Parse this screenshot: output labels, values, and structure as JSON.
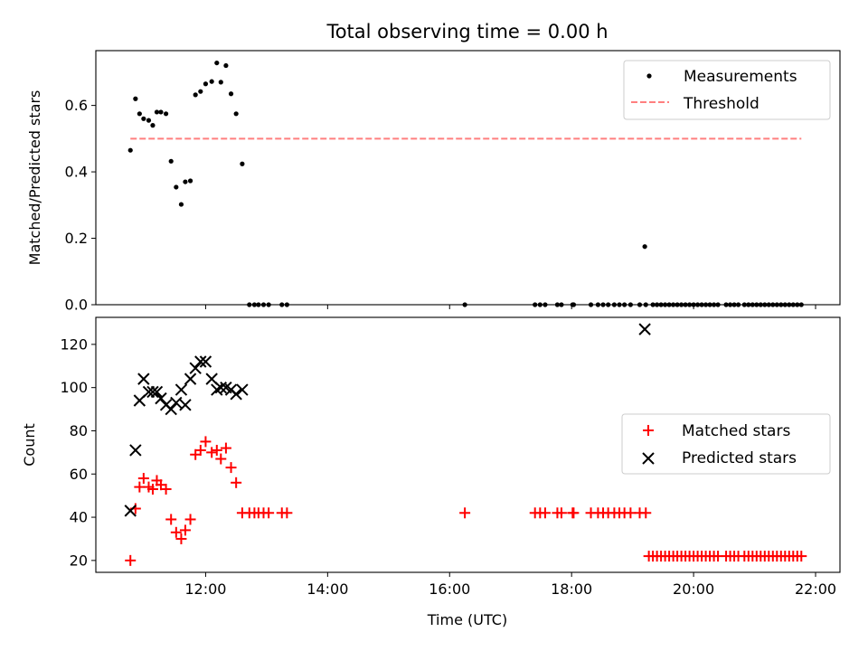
{
  "chart_data": [
    {
      "type": "scatter",
      "title": "Total observing time = 0.00 h",
      "xlabel": "",
      "ylabel": "Matched/Predicted stars",
      "xlim": [
        "10:12",
        "22:24"
      ],
      "ylim": [
        0,
        0.765
      ],
      "x_ticks": [
        "12:00",
        "14:00",
        "16:00",
        "18:00",
        "20:00",
        "22:00"
      ],
      "x_tick_labels_visible": false,
      "y_ticks": [
        0.0,
        0.2,
        0.4,
        0.6
      ],
      "y_tick_labels": [
        "0.0",
        "0.2",
        "0.4",
        "0.6"
      ],
      "legend": {
        "placement": "top-right",
        "entries": [
          "Measurements",
          "Threshold"
        ]
      },
      "series": [
        {
          "name": "Measurements",
          "marker": "dot",
          "color": "#000000",
          "points": [
            [
              "10:46",
              0.465
            ],
            [
              "10:51",
              0.62
            ],
            [
              "10:55",
              0.575
            ],
            [
              "10:59",
              0.56
            ],
            [
              "11:04",
              0.555
            ],
            [
              "11:08",
              0.54
            ],
            [
              "11:12",
              0.58
            ],
            [
              "11:16",
              0.58
            ],
            [
              "11:21",
              0.575
            ],
            [
              "11:26",
              0.432
            ],
            [
              "11:31",
              0.354
            ],
            [
              "11:36",
              0.302
            ],
            [
              "11:40",
              0.37
            ],
            [
              "11:45",
              0.373
            ],
            [
              "11:50",
              0.632
            ],
            [
              "11:55",
              0.642
            ],
            [
              "12:00",
              0.665
            ],
            [
              "12:06",
              0.672
            ],
            [
              "12:11",
              0.728
            ],
            [
              "12:15",
              0.67
            ],
            [
              "12:20",
              0.72
            ],
            [
              "12:25",
              0.635
            ],
            [
              "12:30",
              0.575
            ],
            [
              "12:36",
              0.424
            ],
            [
              "12:43",
              0.0
            ],
            [
              "12:48",
              0.0
            ],
            [
              "12:52",
              0.0
            ],
            [
              "12:57",
              0.0
            ],
            [
              "13:02",
              0.0
            ],
            [
              "13:15",
              0.0
            ],
            [
              "13:20",
              0.0
            ],
            [
              "16:15",
              0.0
            ],
            [
              "17:24",
              0.0
            ],
            [
              "17:29",
              0.0
            ],
            [
              "17:34",
              0.0
            ],
            [
              "17:46",
              0.0
            ],
            [
              "17:50",
              0.0
            ],
            [
              "18:01",
              0.0
            ],
            [
              "18:02",
              0.0
            ],
            [
              "18:19",
              0.0
            ],
            [
              "18:26",
              0.0
            ],
            [
              "18:31",
              0.0
            ],
            [
              "18:36",
              0.0
            ],
            [
              "18:42",
              0.0
            ],
            [
              "18:47",
              0.0
            ],
            [
              "18:52",
              0.0
            ],
            [
              "18:58",
              0.0
            ],
            [
              "19:07",
              0.0
            ],
            [
              "19:13",
              0.0
            ],
            [
              "19:12",
              0.175
            ],
            [
              "19:20",
              0.0
            ],
            [
              "19:24",
              0.0
            ],
            [
              "19:28",
              0.0
            ],
            [
              "19:32",
              0.0
            ],
            [
              "19:36",
              0.0
            ],
            [
              "19:40",
              0.0
            ],
            [
              "19:44",
              0.0
            ],
            [
              "19:48",
              0.0
            ],
            [
              "19:52",
              0.0
            ],
            [
              "19:56",
              0.0
            ],
            [
              "20:00",
              0.0
            ],
            [
              "20:04",
              0.0
            ],
            [
              "20:08",
              0.0
            ],
            [
              "20:12",
              0.0
            ],
            [
              "20:16",
              0.0
            ],
            [
              "20:20",
              0.0
            ],
            [
              "20:24",
              0.0
            ],
            [
              "20:32",
              0.0
            ],
            [
              "20:36",
              0.0
            ],
            [
              "20:40",
              0.0
            ],
            [
              "20:44",
              0.0
            ],
            [
              "20:50",
              0.0
            ],
            [
              "20:54",
              0.0
            ],
            [
              "20:58",
              0.0
            ],
            [
              "21:02",
              0.0
            ],
            [
              "21:06",
              0.0
            ],
            [
              "21:10",
              0.0
            ],
            [
              "21:14",
              0.0
            ],
            [
              "21:18",
              0.0
            ],
            [
              "21:22",
              0.0
            ],
            [
              "21:26",
              0.0
            ],
            [
              "21:30",
              0.0
            ],
            [
              "21:34",
              0.0
            ],
            [
              "21:38",
              0.0
            ],
            [
              "21:42",
              0.0
            ],
            [
              "21:46",
              0.0
            ]
          ]
        },
        {
          "name": "Threshold",
          "style": "dashed-line",
          "color": "#ff7f7f",
          "points": [
            [
              "10:46",
              0.5
            ],
            [
              "21:46",
              0.5
            ]
          ]
        }
      ]
    },
    {
      "type": "scatter",
      "title": "",
      "xlabel": "Time (UTC)",
      "ylabel": "Count",
      "xlim": [
        "10:12",
        "22:24"
      ],
      "ylim": [
        14.5,
        132.5
      ],
      "x_ticks": [
        "12:00",
        "14:00",
        "16:00",
        "18:00",
        "20:00",
        "22:00"
      ],
      "x_tick_labels": [
        "12:00",
        "14:00",
        "16:00",
        "18:00",
        "20:00",
        "22:00"
      ],
      "y_ticks": [
        20,
        40,
        60,
        80,
        100,
        120
      ],
      "y_tick_labels": [
        "20",
        "40",
        "60",
        "80",
        "100",
        "120"
      ],
      "legend": {
        "placement": "center-right",
        "entries": [
          "Matched stars",
          "Predicted stars"
        ]
      },
      "series": [
        {
          "name": "Matched stars",
          "marker": "plus",
          "color": "#ff0000",
          "points": [
            [
              "10:46",
              20
            ],
            [
              "10:51",
              44
            ],
            [
              "10:55",
              54
            ],
            [
              "10:59",
              58
            ],
            [
              "11:04",
              54
            ],
            [
              "11:08",
              53
            ],
            [
              "11:12",
              57
            ],
            [
              "11:16",
              55
            ],
            [
              "11:21",
              53
            ],
            [
              "11:26",
              39
            ],
            [
              "11:31",
              33
            ],
            [
              "11:36",
              30
            ],
            [
              "11:40",
              34
            ],
            [
              "11:45",
              39
            ],
            [
              "11:50",
              69
            ],
            [
              "11:55",
              71
            ],
            [
              "12:00",
              75
            ],
            [
              "12:06",
              70
            ],
            [
              "12:11",
              71
            ],
            [
              "12:15",
              67
            ],
            [
              "12:20",
              72
            ],
            [
              "12:25",
              63
            ],
            [
              "12:30",
              56
            ],
            [
              "12:36",
              42
            ],
            [
              "12:43",
              42
            ],
            [
              "12:48",
              42
            ],
            [
              "12:52",
              42
            ],
            [
              "12:57",
              42
            ],
            [
              "13:02",
              42
            ],
            [
              "13:15",
              42
            ],
            [
              "13:20",
              42
            ],
            [
              "16:15",
              42
            ],
            [
              "17:24",
              42
            ],
            [
              "17:29",
              42
            ],
            [
              "17:34",
              42
            ],
            [
              "17:46",
              42
            ],
            [
              "17:50",
              42
            ],
            [
              "18:01",
              42
            ],
            [
              "18:02",
              42
            ],
            [
              "18:19",
              42
            ],
            [
              "18:26",
              42
            ],
            [
              "18:31",
              42
            ],
            [
              "18:36",
              42
            ],
            [
              "18:42",
              42
            ],
            [
              "18:47",
              42
            ],
            [
              "18:52",
              42
            ],
            [
              "18:58",
              42
            ],
            [
              "19:07",
              42
            ],
            [
              "19:13",
              42
            ],
            [
              "19:16",
              22
            ],
            [
              "19:20",
              22
            ],
            [
              "19:24",
              22
            ],
            [
              "19:28",
              22
            ],
            [
              "19:32",
              22
            ],
            [
              "19:36",
              22
            ],
            [
              "19:40",
              22
            ],
            [
              "19:44",
              22
            ],
            [
              "19:48",
              22
            ],
            [
              "19:52",
              22
            ],
            [
              "19:56",
              22
            ],
            [
              "20:00",
              22
            ],
            [
              "20:04",
              22
            ],
            [
              "20:08",
              22
            ],
            [
              "20:12",
              22
            ],
            [
              "20:16",
              22
            ],
            [
              "20:20",
              22
            ],
            [
              "20:24",
              22
            ],
            [
              "20:32",
              22
            ],
            [
              "20:36",
              22
            ],
            [
              "20:40",
              22
            ],
            [
              "20:44",
              22
            ],
            [
              "20:50",
              22
            ],
            [
              "20:54",
              22
            ],
            [
              "20:58",
              22
            ],
            [
              "21:02",
              22
            ],
            [
              "21:06",
              22
            ],
            [
              "21:10",
              22
            ],
            [
              "21:14",
              22
            ],
            [
              "21:18",
              22
            ],
            [
              "21:22",
              22
            ],
            [
              "21:26",
              22
            ],
            [
              "21:30",
              22
            ],
            [
              "21:34",
              22
            ],
            [
              "21:38",
              22
            ],
            [
              "21:42",
              22
            ],
            [
              "21:46",
              22
            ]
          ]
        },
        {
          "name": "Predicted stars",
          "marker": "x",
          "color": "#000000",
          "points": [
            [
              "10:46",
              43
            ],
            [
              "10:51",
              71
            ],
            [
              "10:55",
              94
            ],
            [
              "10:59",
              104
            ],
            [
              "11:04",
              98
            ],
            [
              "11:08",
              98
            ],
            [
              "11:12",
              98
            ],
            [
              "11:16",
              95
            ],
            [
              "11:21",
              92
            ],
            [
              "11:26",
              90
            ],
            [
              "11:31",
              93
            ],
            [
              "11:36",
              99
            ],
            [
              "11:40",
              92
            ],
            [
              "11:45",
              104
            ],
            [
              "11:50",
              109
            ],
            [
              "11:55",
              112
            ],
            [
              "12:00",
              112
            ],
            [
              "12:06",
              104
            ],
            [
              "12:11",
              99
            ],
            [
              "12:15",
              100
            ],
            [
              "12:20",
              100
            ],
            [
              "12:25",
              99
            ],
            [
              "12:30",
              97
            ],
            [
              "12:36",
              99
            ],
            [
              "19:12",
              127
            ]
          ]
        }
      ]
    }
  ]
}
